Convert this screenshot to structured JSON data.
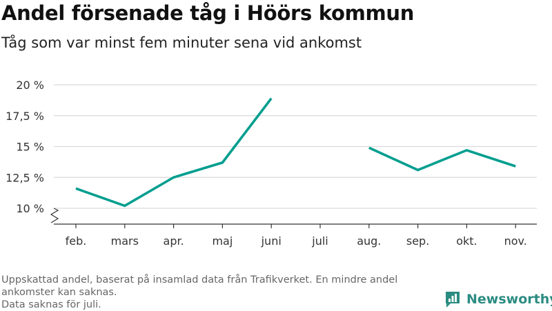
{
  "header": {
    "title": "Andel försenade tåg i Höörs kommun",
    "subtitle": "Tåg som var minst fem minuter sena vid ankomst"
  },
  "footer": {
    "note_line1": "Uppskattad andel, baserat på insamlad data från Trafikverket. En mindre andel",
    "note_line2": "ankomster kan saknas.",
    "note_line3": "Data saknas för juli.",
    "brand": "Newsworthy"
  },
  "colors": {
    "line": "#009e8f",
    "grid": "#d9d9d9",
    "axis": "#333333",
    "brand": "#2b8c82"
  },
  "chart_data": {
    "type": "line",
    "categories": [
      "feb.",
      "mars",
      "apr.",
      "maj",
      "juni",
      "juli",
      "aug.",
      "sep.",
      "okt.",
      "nov."
    ],
    "series": [
      {
        "values": [
          11.6,
          10.2,
          12.5,
          13.7,
          18.9,
          null,
          14.9,
          13.1,
          14.7,
          13.4
        ]
      }
    ],
    "yticks": [
      10,
      12.5,
      15,
      17.5,
      20
    ],
    "ytick_labels": [
      "10 %",
      "12,5 %",
      "15 %",
      "17,5 %",
      "20 %"
    ],
    "ylim": [
      10,
      20
    ],
    "axis_break": true,
    "grid": true,
    "legend": "none"
  }
}
